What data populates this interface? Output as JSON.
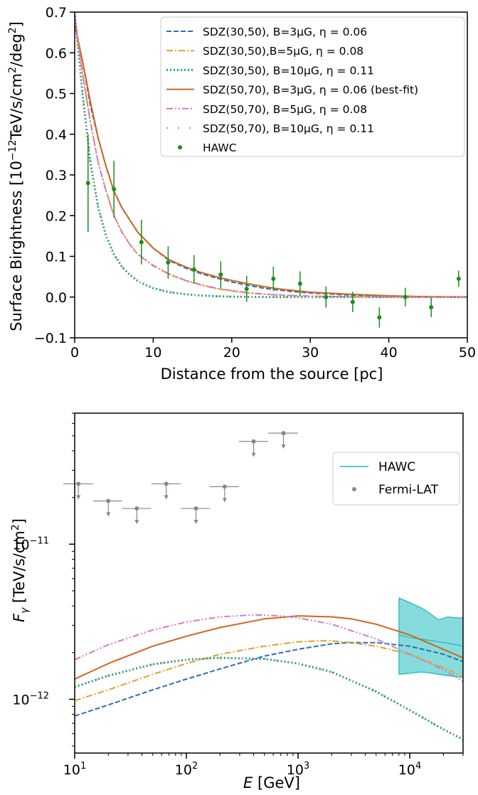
{
  "colors": {
    "blue": "#2c6fb5",
    "orange": "#e0a12a",
    "teal": "#1aa08a",
    "dark_orange": "#d2661d",
    "pink": "#d479c6",
    "salmon": "#e9946a",
    "green": "#1e8a1e",
    "gray": "#888888",
    "cyan_band": "#5dd0d0",
    "cyan_line": "#1fb9c4"
  },
  "chart_data": [
    {
      "type": "line",
      "title": "",
      "xlabel": "Distance from the source [pc]",
      "ylabel": "Surface Birghtness [10",
      "ylabel_exp": "−12",
      "ylabel_rest": "TeV/s/cm",
      "ylabel_exp2": "2",
      "ylabel_rest2": "/deg",
      "ylabel_exp3": "2",
      "ylabel_close": "]",
      "xlim": [
        0,
        50
      ],
      "ylim": [
        -0.1,
        0.7
      ],
      "xticks": [
        "0",
        "10",
        "20",
        "30",
        "40",
        "50"
      ],
      "yticks": [
        "−0.1",
        "0.0",
        "0.1",
        "0.2",
        "0.3",
        "0.4",
        "0.5",
        "0.6",
        "0.7"
      ],
      "legend_position": "top-right",
      "series": [
        {
          "name": "SDZ(30,50), B=3μG, η = 0.06",
          "style": "dashed",
          "color": "#2c6fb5",
          "x": [
            0,
            1,
            2,
            3,
            4,
            5,
            6,
            7,
            8,
            10,
            12,
            14,
            16,
            18,
            20,
            22,
            24,
            26,
            28,
            30,
            35,
            40,
            45,
            50
          ],
          "y": [
            0.67,
            0.58,
            0.47,
            0.39,
            0.32,
            0.26,
            0.22,
            0.19,
            0.16,
            0.12,
            0.09,
            0.072,
            0.058,
            0.047,
            0.037,
            0.029,
            0.022,
            0.017,
            0.013,
            0.01,
            0.005,
            0.002,
            0.001,
            0.0
          ]
        },
        {
          "name": "SDZ(30,50),B=5μG, η = 0.08",
          "style": "dashdot",
          "color": "#e0a12a",
          "x": [
            0,
            1,
            2,
            3,
            4,
            5,
            6,
            7,
            8,
            10,
            12,
            14,
            16,
            18,
            20,
            22,
            25,
            30,
            35,
            40,
            50
          ],
          "y": [
            0.69,
            0.55,
            0.43,
            0.33,
            0.26,
            0.2,
            0.16,
            0.13,
            0.105,
            0.077,
            0.056,
            0.041,
            0.03,
            0.021,
            0.015,
            0.01,
            0.006,
            0.002,
            0.001,
            0.0,
            0.0
          ]
        },
        {
          "name": "SDZ(30,50), B=10μG, η = 0.11",
          "style": "dotted",
          "color": "#1aa08a",
          "x": [
            0,
            1,
            2,
            3,
            4,
            5,
            6,
            7,
            8,
            9,
            10,
            12,
            14,
            16,
            18,
            20,
            25,
            30,
            40,
            50
          ],
          "y": [
            0.7,
            0.5,
            0.33,
            0.22,
            0.15,
            0.105,
            0.075,
            0.055,
            0.04,
            0.03,
            0.022,
            0.012,
            0.007,
            0.004,
            0.002,
            0.001,
            0.0,
            0.0,
            0.0,
            0.0
          ]
        },
        {
          "name": "SDZ(50,70), B=3μG, η = 0.06 (best-fit)",
          "style": "solid",
          "color": "#d2661d",
          "x": [
            0,
            1,
            2,
            3,
            4,
            5,
            6,
            7,
            8,
            10,
            12,
            14,
            16,
            18,
            20,
            22,
            24,
            26,
            28,
            30,
            35,
            40,
            45,
            50
          ],
          "y": [
            0.67,
            0.58,
            0.48,
            0.39,
            0.32,
            0.26,
            0.22,
            0.19,
            0.16,
            0.12,
            0.092,
            0.075,
            0.061,
            0.05,
            0.041,
            0.033,
            0.026,
            0.02,
            0.016,
            0.012,
            0.007,
            0.003,
            0.001,
            0.0
          ]
        },
        {
          "name": "SDZ(50,70), B=5μG, η = 0.08",
          "style": "dashdotdot",
          "color": "#d479c6",
          "x": [
            0,
            1,
            2,
            3,
            4,
            5,
            6,
            7,
            8,
            10,
            12,
            14,
            16,
            18,
            20,
            22,
            25,
            30,
            40,
            50
          ],
          "y": [
            0.69,
            0.55,
            0.43,
            0.33,
            0.26,
            0.2,
            0.16,
            0.13,
            0.106,
            0.078,
            0.057,
            0.042,
            0.031,
            0.022,
            0.016,
            0.011,
            0.006,
            0.002,
            0.0,
            0.0
          ]
        },
        {
          "name": "SDZ(50,70), B=10μG, η = 0.11",
          "style": "sparse-dot",
          "color": "#e9946a",
          "x": [
            0,
            1,
            2,
            3,
            4,
            5,
            6,
            7,
            8,
            9,
            10,
            12,
            14,
            16,
            18,
            20,
            25,
            30,
            40,
            50
          ],
          "y": [
            0.7,
            0.5,
            0.33,
            0.22,
            0.15,
            0.105,
            0.075,
            0.055,
            0.04,
            0.03,
            0.022,
            0.012,
            0.007,
            0.004,
            0.002,
            0.001,
            0.0,
            0.0,
            0.0,
            0.0
          ]
        },
        {
          "name": "HAWC",
          "style": "errorbar",
          "color": "#1e8a1e",
          "x": [
            1.7,
            5.0,
            8.5,
            11.9,
            15.2,
            18.6,
            21.9,
            25.3,
            28.7,
            32.0,
            35.4,
            38.8,
            42.1,
            45.4,
            48.9
          ],
          "y": [
            0.28,
            0.265,
            0.135,
            0.085,
            0.068,
            0.055,
            0.02,
            0.045,
            0.033,
            0.0,
            -0.012,
            -0.05,
            0.0,
            -0.025,
            0.045
          ],
          "yerr": [
            0.12,
            0.07,
            0.055,
            0.04,
            0.035,
            0.033,
            0.032,
            0.03,
            0.03,
            0.026,
            0.025,
            0.025,
            0.023,
            0.024,
            0.02
          ]
        }
      ]
    },
    {
      "type": "line",
      "title": "",
      "xlabel": "E",
      "xlabel_unit": " [GeV]",
      "ylabel": "F",
      "ylabel_sub": "γ",
      "ylabel_unit": " [TeV/s/cm",
      "ylabel_exp": "2",
      "ylabel_close": "]",
      "xscale": "log",
      "yscale": "log",
      "xlim": [
        10,
        30000
      ],
      "ylim": [
        4.5e-13,
        7e-11
      ],
      "xticks": [
        {
          "base": "10",
          "exp": "1"
        },
        {
          "base": "10",
          "exp": "2"
        },
        {
          "base": "10",
          "exp": "3"
        },
        {
          "base": "10",
          "exp": "4"
        }
      ],
      "yticks": [
        {
          "base": "10",
          "exp": "−12"
        },
        {
          "base": "10",
          "exp": "−11"
        }
      ],
      "legend_position": "upper-right",
      "legend": [
        {
          "name": "HAWC",
          "style": "band",
          "color": "#1fb9c4"
        },
        {
          "name": "Fermi-LAT",
          "style": "point",
          "color": "#888888"
        }
      ],
      "fermi_upper_limits": {
        "E": [
          10.8,
          20,
          36,
          66,
          122,
          220,
          400,
          740
        ],
        "F": [
          2.45e-11,
          1.9e-11,
          1.7e-11,
          2.45e-11,
          1.7e-11,
          2.35e-11,
          4.6e-11,
          5.2e-11
        ],
        "E_low": [
          7.9,
          14.7,
          26.5,
          48.5,
          89.5,
          162,
          295,
          540
        ],
        "E_high": [
          14.7,
          26.5,
          48.5,
          89.5,
          162,
          295,
          540,
          1000
        ]
      },
      "hawc_band": {
        "E": [
          8000,
          10000,
          12500,
          15000,
          18000,
          22000,
          26000,
          30000
        ],
        "F_low": [
          1.45e-12,
          1.47e-12,
          1.5e-12,
          1.48e-12,
          1.45e-12,
          1.42e-12,
          1.4e-12,
          1.38e-12
        ],
        "F_high": [
          4.5e-12,
          4.2e-12,
          3.9e-12,
          3.6e-12,
          3.25e-12,
          3.4e-12,
          3.35e-12,
          3.35e-12
        ],
        "F_center": [
          2.6e-12,
          2.5e-12,
          2.45e-12,
          2.4e-12,
          2.35e-12,
          2.3e-12,
          2.25e-12,
          2.2e-12
        ]
      },
      "series": [
        {
          "style": "dashed",
          "color": "#2c6fb5",
          "E": [
            10,
            20,
            50,
            100,
            200,
            500,
            1000,
            2000,
            3000,
            5000,
            10000,
            20000,
            30000
          ],
          "F": [
            7.8e-13,
            9.2e-13,
            1.15e-12,
            1.35e-12,
            1.57e-12,
            1.9e-12,
            2.1e-12,
            2.28e-12,
            2.32e-12,
            2.32e-12,
            2.2e-12,
            1.95e-12,
            1.75e-12
          ]
        },
        {
          "style": "dashdot",
          "color": "#e0a12a",
          "E": [
            10,
            20,
            50,
            100,
            200,
            500,
            1000,
            1500,
            2000,
            3000,
            5000,
            10000,
            20000,
            30000
          ],
          "F": [
            9.8e-13,
            1.15e-12,
            1.45e-12,
            1.7e-12,
            1.95e-12,
            2.2e-12,
            2.35e-12,
            2.38e-12,
            2.38e-12,
            2.32e-12,
            2.2e-12,
            1.95e-12,
            1.6e-12,
            1.4e-12
          ]
        },
        {
          "style": "dotted",
          "color": "#1aa08a",
          "E": [
            10,
            20,
            50,
            100,
            200,
            500,
            1000,
            2000,
            5000,
            10000,
            20000,
            30000
          ],
          "F": [
            1.2e-12,
            1.42e-12,
            1.68e-12,
            1.8e-12,
            1.85e-12,
            1.82e-12,
            1.7e-12,
            1.5e-12,
            1.12e-12,
            8.5e-13,
            6.4e-13,
            5.5e-13
          ]
        },
        {
          "style": "solid",
          "color": "#d2661d",
          "E": [
            10,
            20,
            50,
            100,
            200,
            500,
            1000,
            2000,
            3000,
            5000,
            10000,
            20000,
            30000
          ],
          "F": [
            1.35e-12,
            1.7e-12,
            2.2e-12,
            2.55e-12,
            2.9e-12,
            3.3e-12,
            3.45e-12,
            3.4e-12,
            3.3e-12,
            3.05e-12,
            2.6e-12,
            2.1e-12,
            1.85e-12
          ]
        },
        {
          "style": "dashdotdot",
          "color": "#d479c6",
          "E": [
            10,
            20,
            50,
            100,
            200,
            400,
            700,
            1000,
            2000,
            5000,
            10000,
            20000,
            30000
          ],
          "F": [
            1.8e-12,
            2.25e-12,
            2.8e-12,
            3.15e-12,
            3.4e-12,
            3.5e-12,
            3.45e-12,
            3.35e-12,
            3.05e-12,
            2.45e-12,
            1.95e-12,
            1.55e-12,
            1.3e-12
          ]
        },
        {
          "style": "sparse-dot",
          "color": "#e9946a",
          "E": [
            10,
            20,
            50,
            100,
            200,
            500,
            1000,
            2000,
            5000,
            10000,
            20000,
            30000
          ],
          "F": [
            1.2e-12,
            1.42e-12,
            1.68e-12,
            1.8e-12,
            1.85e-12,
            1.82e-12,
            1.7e-12,
            1.5e-12,
            1.12e-12,
            8.5e-13,
            6.4e-13,
            5.5e-13
          ]
        }
      ]
    }
  ]
}
